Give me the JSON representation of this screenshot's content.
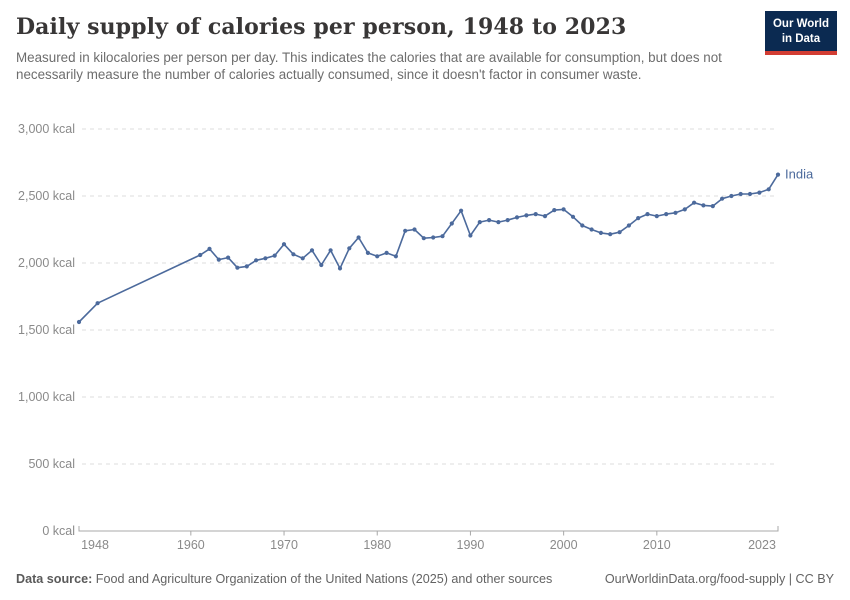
{
  "header": {
    "title": "Daily supply of calories per person, 1948 to 2023",
    "subtitle": "Measured in kilocalories per person per day. This indicates the calories that are available for consumption, but does not necessarily measure the number of calories actually consumed, since it doesn't factor in consumer waste.",
    "logo": {
      "line1": "Our World",
      "line2": "in Data",
      "bg_color": "#0b2a51",
      "stripe_color": "#d23d33"
    }
  },
  "chart_data": {
    "type": "line",
    "title": "Daily supply of calories per person, 1948 to 2023",
    "xlabel": "",
    "ylabel": "",
    "xlim": [
      1948,
      2023
    ],
    "ylim": [
      0,
      3000
    ],
    "grid": "horizontal-dashed",
    "legend_position": "end-of-line",
    "x_ticks": [
      {
        "value": 1948,
        "label": "1948"
      },
      {
        "value": 1960,
        "label": "1960"
      },
      {
        "value": 1970,
        "label": "1970"
      },
      {
        "value": 1980,
        "label": "1980"
      },
      {
        "value": 1990,
        "label": "1990"
      },
      {
        "value": 2000,
        "label": "2000"
      },
      {
        "value": 2010,
        "label": "2010"
      },
      {
        "value": 2023,
        "label": "2023"
      }
    ],
    "y_ticks": [
      {
        "value": 0,
        "label": "0 kcal"
      },
      {
        "value": 500,
        "label": "500 kcal"
      },
      {
        "value": 1000,
        "label": "1,000 kcal"
      },
      {
        "value": 1500,
        "label": "1,500 kcal"
      },
      {
        "value": 2000,
        "label": "2,000 kcal"
      },
      {
        "value": 2500,
        "label": "2,500 kcal"
      },
      {
        "value": 3000,
        "label": "3,000 kcal"
      }
    ],
    "series": [
      {
        "name": "India",
        "color": "#4c6a9c",
        "unit": "kcal",
        "points": [
          [
            1948,
            1560
          ],
          [
            1950,
            1700
          ],
          [
            1961,
            2060
          ],
          [
            1962,
            2105
          ],
          [
            1963,
            2025
          ],
          [
            1964,
            2040
          ],
          [
            1965,
            1965
          ],
          [
            1966,
            1975
          ],
          [
            1967,
            2020
          ],
          [
            1968,
            2035
          ],
          [
            1969,
            2055
          ],
          [
            1970,
            2140
          ],
          [
            1971,
            2065
          ],
          [
            1972,
            2035
          ],
          [
            1973,
            2095
          ],
          [
            1974,
            1985
          ],
          [
            1975,
            2095
          ],
          [
            1976,
            1960
          ],
          [
            1977,
            2110
          ],
          [
            1978,
            2190
          ],
          [
            1979,
            2075
          ],
          [
            1980,
            2050
          ],
          [
            1981,
            2075
          ],
          [
            1982,
            2050
          ],
          [
            1983,
            2240
          ],
          [
            1984,
            2250
          ],
          [
            1985,
            2185
          ],
          [
            1986,
            2190
          ],
          [
            1987,
            2200
          ],
          [
            1988,
            2295
          ],
          [
            1989,
            2390
          ],
          [
            1990,
            2205
          ],
          [
            1991,
            2305
          ],
          [
            1992,
            2320
          ],
          [
            1993,
            2305
          ],
          [
            1994,
            2320
          ],
          [
            1995,
            2340
          ],
          [
            1996,
            2355
          ],
          [
            1997,
            2365
          ],
          [
            1998,
            2350
          ],
          [
            1999,
            2395
          ],
          [
            2000,
            2400
          ],
          [
            2001,
            2345
          ],
          [
            2002,
            2280
          ],
          [
            2003,
            2250
          ],
          [
            2004,
            2225
          ],
          [
            2005,
            2215
          ],
          [
            2006,
            2230
          ],
          [
            2007,
            2280
          ],
          [
            2008,
            2335
          ],
          [
            2009,
            2365
          ],
          [
            2010,
            2350
          ],
          [
            2011,
            2365
          ],
          [
            2012,
            2375
          ],
          [
            2013,
            2400
          ],
          [
            2014,
            2450
          ],
          [
            2015,
            2430
          ],
          [
            2016,
            2425
          ],
          [
            2017,
            2480
          ],
          [
            2018,
            2500
          ],
          [
            2019,
            2515
          ],
          [
            2020,
            2515
          ],
          [
            2021,
            2525
          ],
          [
            2022,
            2550
          ],
          [
            2023,
            2660
          ]
        ]
      }
    ]
  },
  "footer": {
    "source_label": "Data source:",
    "source_text": " Food and Agriculture Organization of the United Nations (2025) and other sources",
    "link_text": "OurWorldinData.org/food-supply | CC BY"
  }
}
